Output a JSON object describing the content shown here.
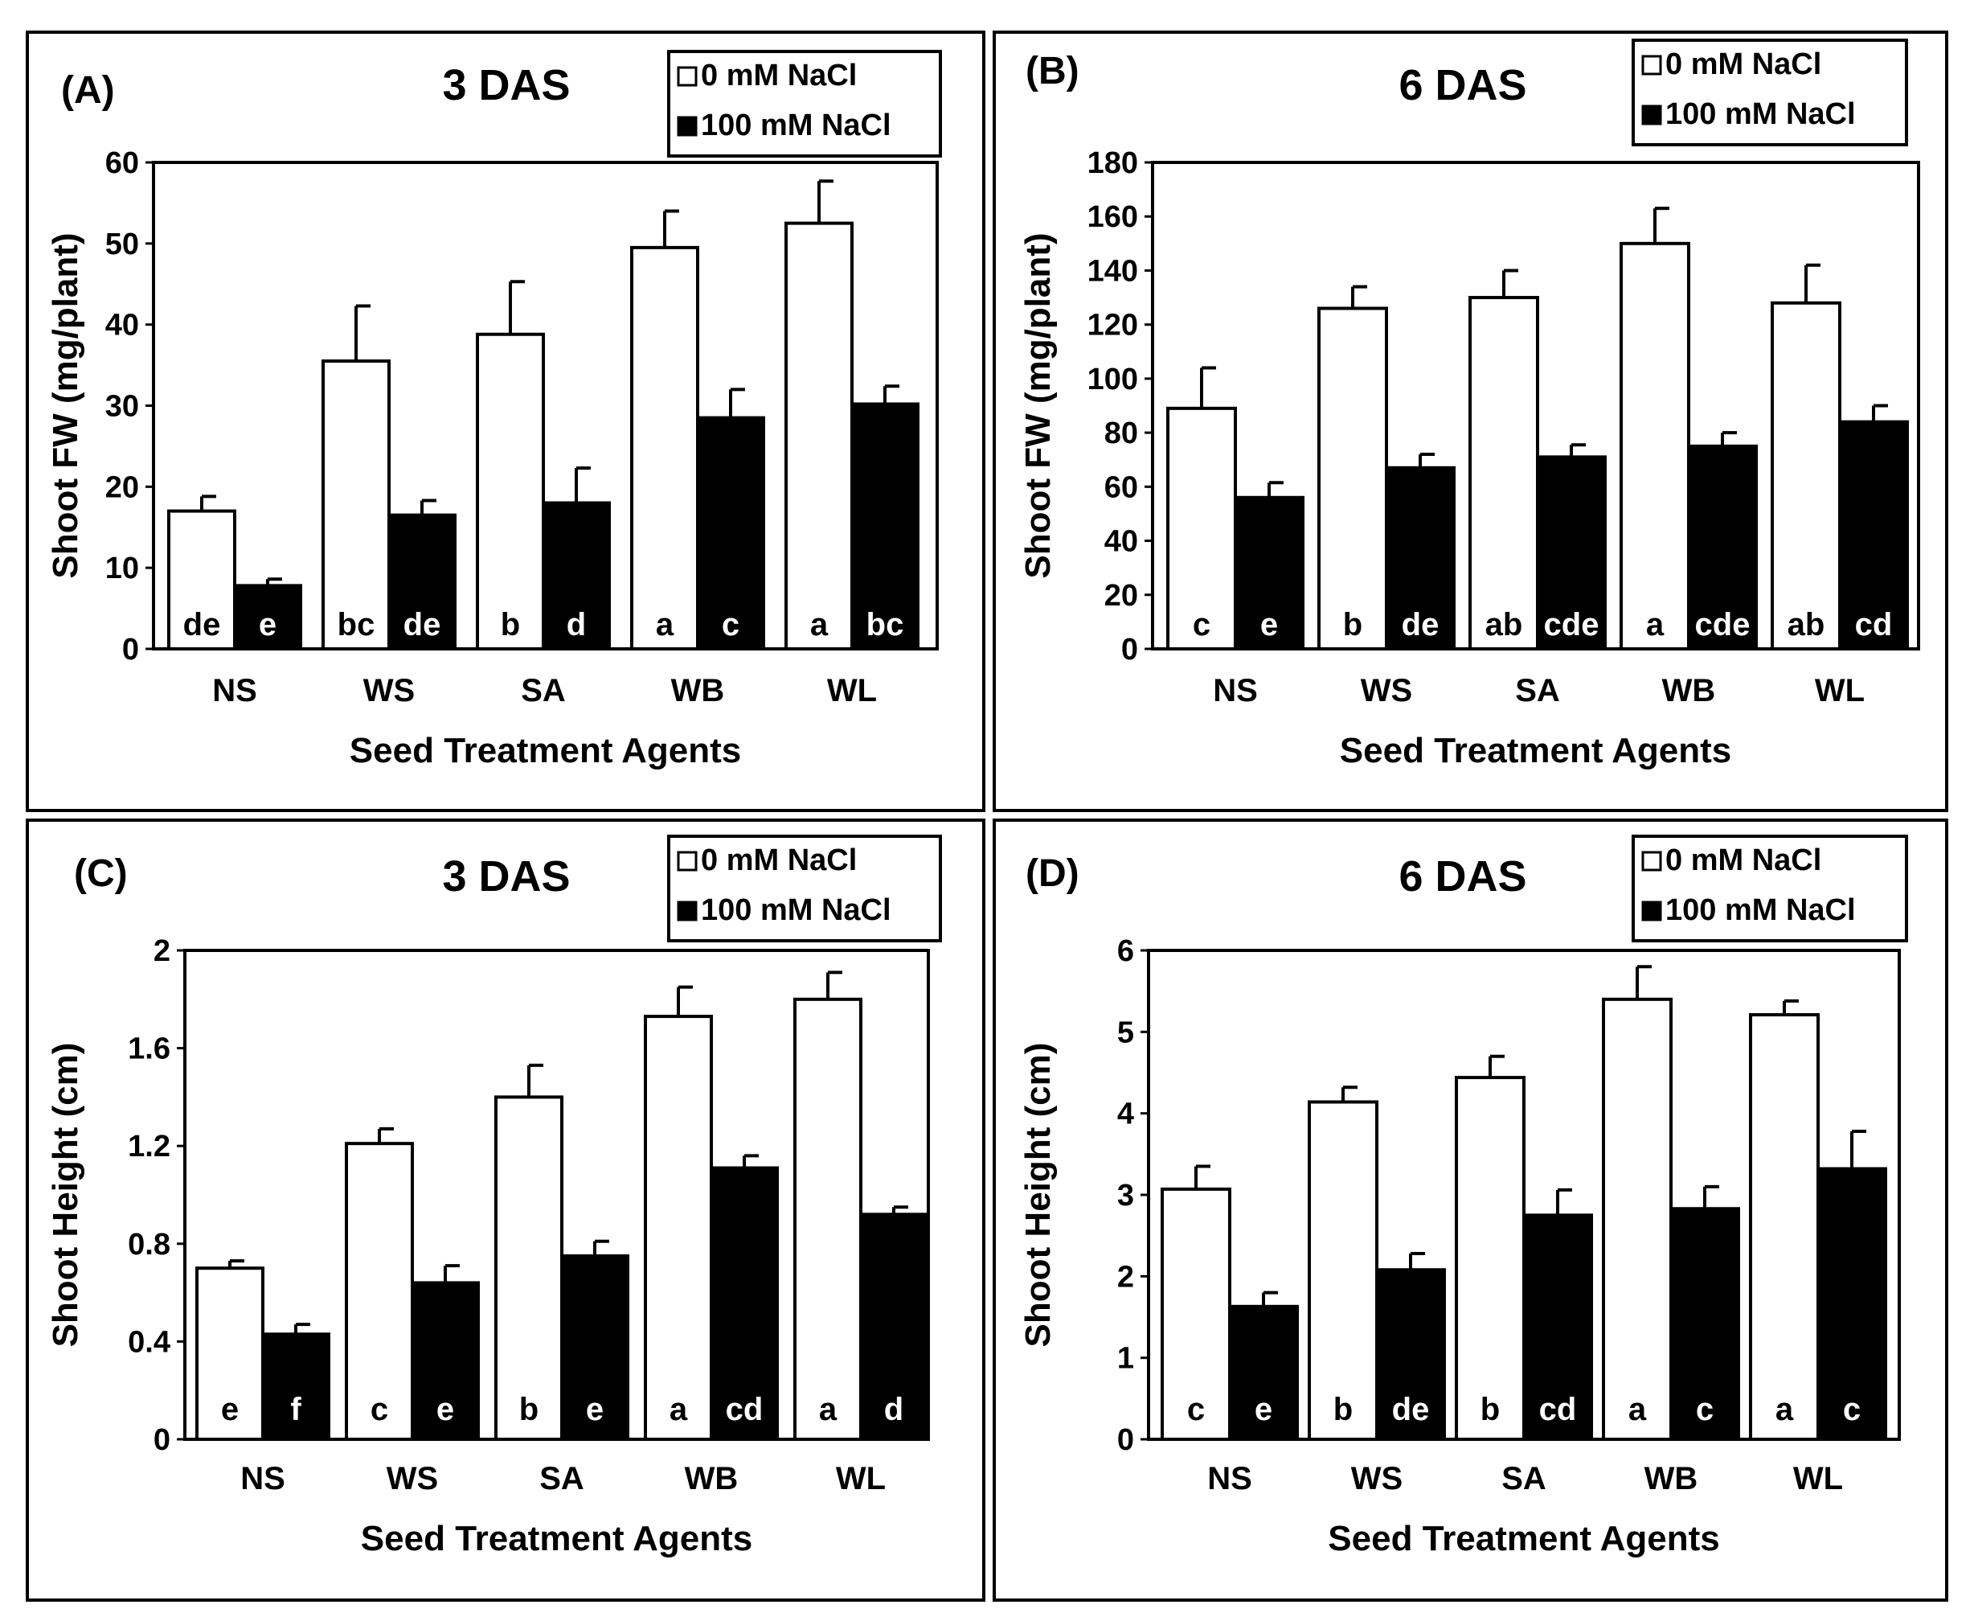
{
  "chart_data": [
    {
      "panel": "(A)",
      "type": "bar",
      "title": "3 DAS",
      "xlabel": "Seed Treatment Agents",
      "ylabel": "Shoot FW (mg/plant)",
      "ylim": [
        0,
        60
      ],
      "yticks": [
        "0",
        "10",
        "20",
        "30",
        "40",
        "50",
        "60"
      ],
      "categories": [
        "NS",
        "WS",
        "SA",
        "WB",
        "WL"
      ],
      "series": [
        {
          "name": "0 mM NaCl",
          "fill": "#ffffff",
          "values": [
            17,
            35.5,
            38.8,
            49.5,
            52.5
          ],
          "errors": [
            1.8,
            6.8,
            6.5,
            4.5,
            5.2
          ],
          "letters": [
            "de",
            "bc",
            "b",
            "a",
            "a"
          ]
        },
        {
          "name": "100 mM NaCl",
          "fill": "#000000",
          "values": [
            7.8,
            16.5,
            18,
            28.5,
            30.2
          ],
          "errors": [
            0.8,
            1.8,
            4.3,
            3.5,
            2.2
          ],
          "letters": [
            "e",
            "de",
            "d",
            "c",
            "bc"
          ]
        }
      ]
    },
    {
      "panel": "(B)",
      "type": "bar",
      "title": "6 DAS",
      "xlabel": "Seed Treatment Agents",
      "ylabel": "Shoot FW (mg/plant)",
      "ylim": [
        0,
        180
      ],
      "yticks": [
        "0",
        "20",
        "40",
        "60",
        "80",
        "100",
        "120",
        "140",
        "160",
        "180"
      ],
      "categories": [
        "NS",
        "WS",
        "SA",
        "WB",
        "WL"
      ],
      "series": [
        {
          "name": "0 mM NaCl",
          "fill": "#ffffff",
          "values": [
            89,
            126,
            130,
            150,
            128
          ],
          "errors": [
            15,
            8,
            10,
            13,
            14
          ],
          "letters": [
            "c",
            "b",
            "ab",
            "a",
            "ab"
          ]
        },
        {
          "name": "100 mM NaCl",
          "fill": "#000000",
          "values": [
            56,
            67,
            71,
            75,
            84
          ],
          "errors": [
            5.5,
            5,
            4.5,
            5,
            6
          ],
          "letters": [
            "e",
            "de",
            "cde",
            "cde",
            "cd"
          ]
        }
      ]
    },
    {
      "panel": "(C)",
      "type": "bar",
      "title": "3 DAS",
      "xlabel": "Seed Treatment Agents",
      "ylabel": "Shoot Height (cm)",
      "ylim": [
        0,
        2
      ],
      "yticks": [
        "0",
        "0.4",
        "0.8",
        "1.2",
        "1.6",
        "2"
      ],
      "categories": [
        "NS",
        "WS",
        "SA",
        "WB",
        "WL"
      ],
      "series": [
        {
          "name": "0 mM NaCl",
          "fill": "#ffffff",
          "values": [
            0.7,
            1.21,
            1.4,
            1.73,
            1.8
          ],
          "errors": [
            0.03,
            0.06,
            0.13,
            0.12,
            0.11
          ],
          "letters": [
            "e",
            "c",
            "b",
            "a",
            "a"
          ]
        },
        {
          "name": "100 mM NaCl",
          "fill": "#000000",
          "values": [
            0.43,
            0.64,
            0.75,
            1.11,
            0.92
          ],
          "errors": [
            0.04,
            0.07,
            0.06,
            0.05,
            0.03
          ],
          "letters": [
            "f",
            "e",
            "e",
            "cd",
            "d"
          ]
        }
      ]
    },
    {
      "panel": "(D)",
      "type": "bar",
      "title": "6 DAS",
      "xlabel": "Seed Treatment Agents",
      "ylabel": "Shoot Height (cm)",
      "ylim": [
        0,
        6
      ],
      "yticks": [
        "0",
        "1",
        "2",
        "3",
        "4",
        "5",
        "6"
      ],
      "categories": [
        "NS",
        "WS",
        "SA",
        "WB",
        "WL"
      ],
      "series": [
        {
          "name": "0 mM NaCl",
          "fill": "#ffffff",
          "values": [
            3.07,
            4.14,
            4.44,
            5.4,
            5.21
          ],
          "errors": [
            0.28,
            0.18,
            0.26,
            0.4,
            0.17
          ],
          "letters": [
            "c",
            "b",
            "b",
            "a",
            "a"
          ]
        },
        {
          "name": "100 mM NaCl",
          "fill": "#000000",
          "values": [
            1.63,
            2.08,
            2.75,
            2.83,
            3.32
          ],
          "errors": [
            0.17,
            0.2,
            0.31,
            0.27,
            0.46
          ],
          "letters": [
            "e",
            "de",
            "cd",
            "c",
            "c"
          ]
        }
      ]
    }
  ]
}
